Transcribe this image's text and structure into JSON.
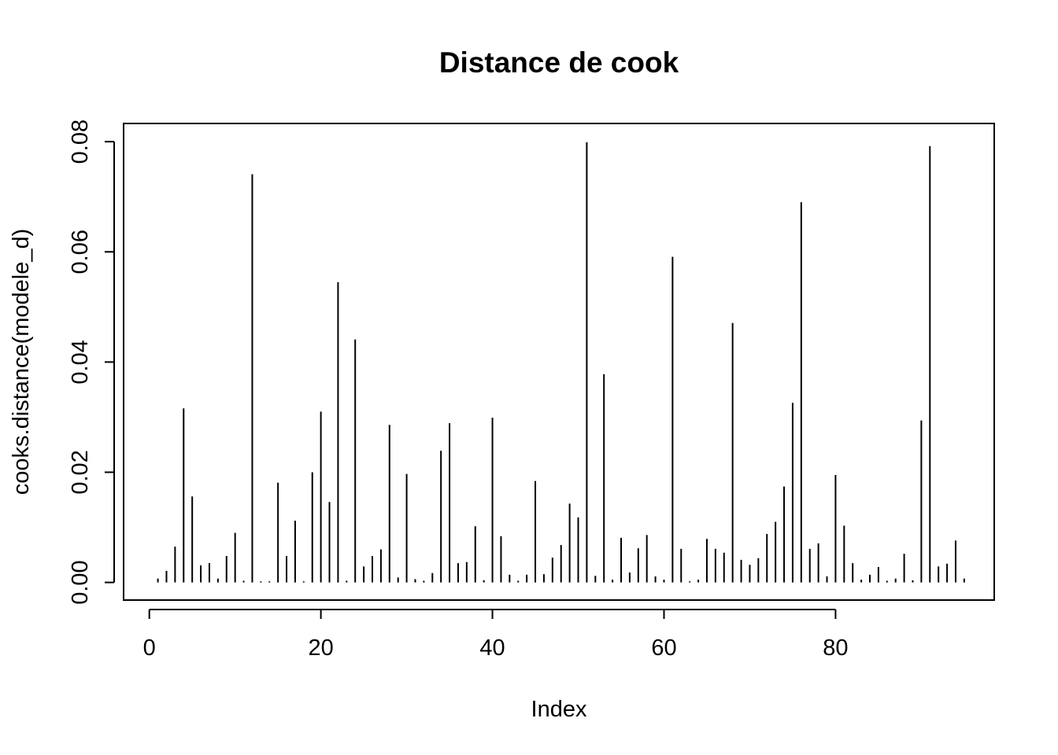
{
  "chart_data": {
    "type": "bar",
    "title": "Distance de cook",
    "xlabel": "Index",
    "ylabel": "cooks.distance(modele_d)",
    "xlim": [
      -3.0,
      98.5
    ],
    "ylim": [
      -0.0032,
      0.0833
    ],
    "x_ticks": [
      0,
      20,
      40,
      60,
      80
    ],
    "x_tick_labels": [
      "0",
      "20",
      "40",
      "60",
      "80"
    ],
    "y_ticks": [
      0,
      0.02,
      0.04,
      0.06,
      0.08
    ],
    "y_tick_labels": [
      "0.00",
      "0.02",
      "0.04",
      "0.06",
      "0.08"
    ],
    "grid": false,
    "legend": "none",
    "x": [
      1,
      2,
      3,
      4,
      5,
      6,
      7,
      8,
      9,
      10,
      11,
      12,
      13,
      14,
      15,
      16,
      17,
      18,
      19,
      20,
      21,
      22,
      23,
      24,
      25,
      26,
      27,
      28,
      29,
      30,
      31,
      32,
      33,
      34,
      35,
      36,
      37,
      38,
      39,
      40,
      41,
      42,
      43,
      44,
      45,
      46,
      47,
      48,
      49,
      50,
      51,
      52,
      53,
      54,
      55,
      56,
      57,
      58,
      59,
      60,
      61,
      62,
      63,
      64,
      65,
      66,
      67,
      68,
      69,
      70,
      71,
      72,
      73,
      74,
      75,
      76,
      77,
      78,
      79,
      80,
      81,
      82,
      83,
      84,
      85,
      86,
      87,
      88,
      89,
      90,
      91,
      92,
      93,
      94,
      95
    ],
    "values": [
      0.0007,
      0.0021,
      0.0065,
      0.0316,
      0.0156,
      0.0031,
      0.0035,
      0.0007,
      0.0048,
      0.009,
      0.0003,
      0.0741,
      0.0002,
      0.0002,
      0.0181,
      0.0048,
      0.0112,
      0.0002,
      0.02,
      0.031,
      0.0146,
      0.0545,
      0.0003,
      0.0441,
      0.0029,
      0.0048,
      0.006,
      0.0286,
      0.0009,
      0.0197,
      0.0006,
      0.0003,
      0.0017,
      0.0239,
      0.0289,
      0.0035,
      0.0037,
      0.0102,
      0.0004,
      0.0299,
      0.0084,
      0.0014,
      0.0003,
      0.0014,
      0.0184,
      0.0015,
      0.0045,
      0.0068,
      0.0143,
      0.0118,
      0.0799,
      0.0012,
      0.0378,
      0.0005,
      0.0081,
      0.0018,
      0.0062,
      0.0086,
      0.0011,
      0.0005,
      0.0591,
      0.0061,
      0.0002,
      0.0005,
      0.0079,
      0.0061,
      0.0054,
      0.0471,
      0.0041,
      0.0032,
      0.0044,
      0.0088,
      0.011,
      0.0174,
      0.0326,
      0.069,
      0.0061,
      0.0071,
      0.0011,
      0.0195,
      0.0103,
      0.0035,
      0.0005,
      0.0014,
      0.0028,
      0.0003,
      0.0007,
      0.0052,
      0.0004,
      0.0294,
      0.0792,
      0.0029,
      0.0034,
      0.0076,
      0.0007
    ],
    "color": "#000000"
  }
}
